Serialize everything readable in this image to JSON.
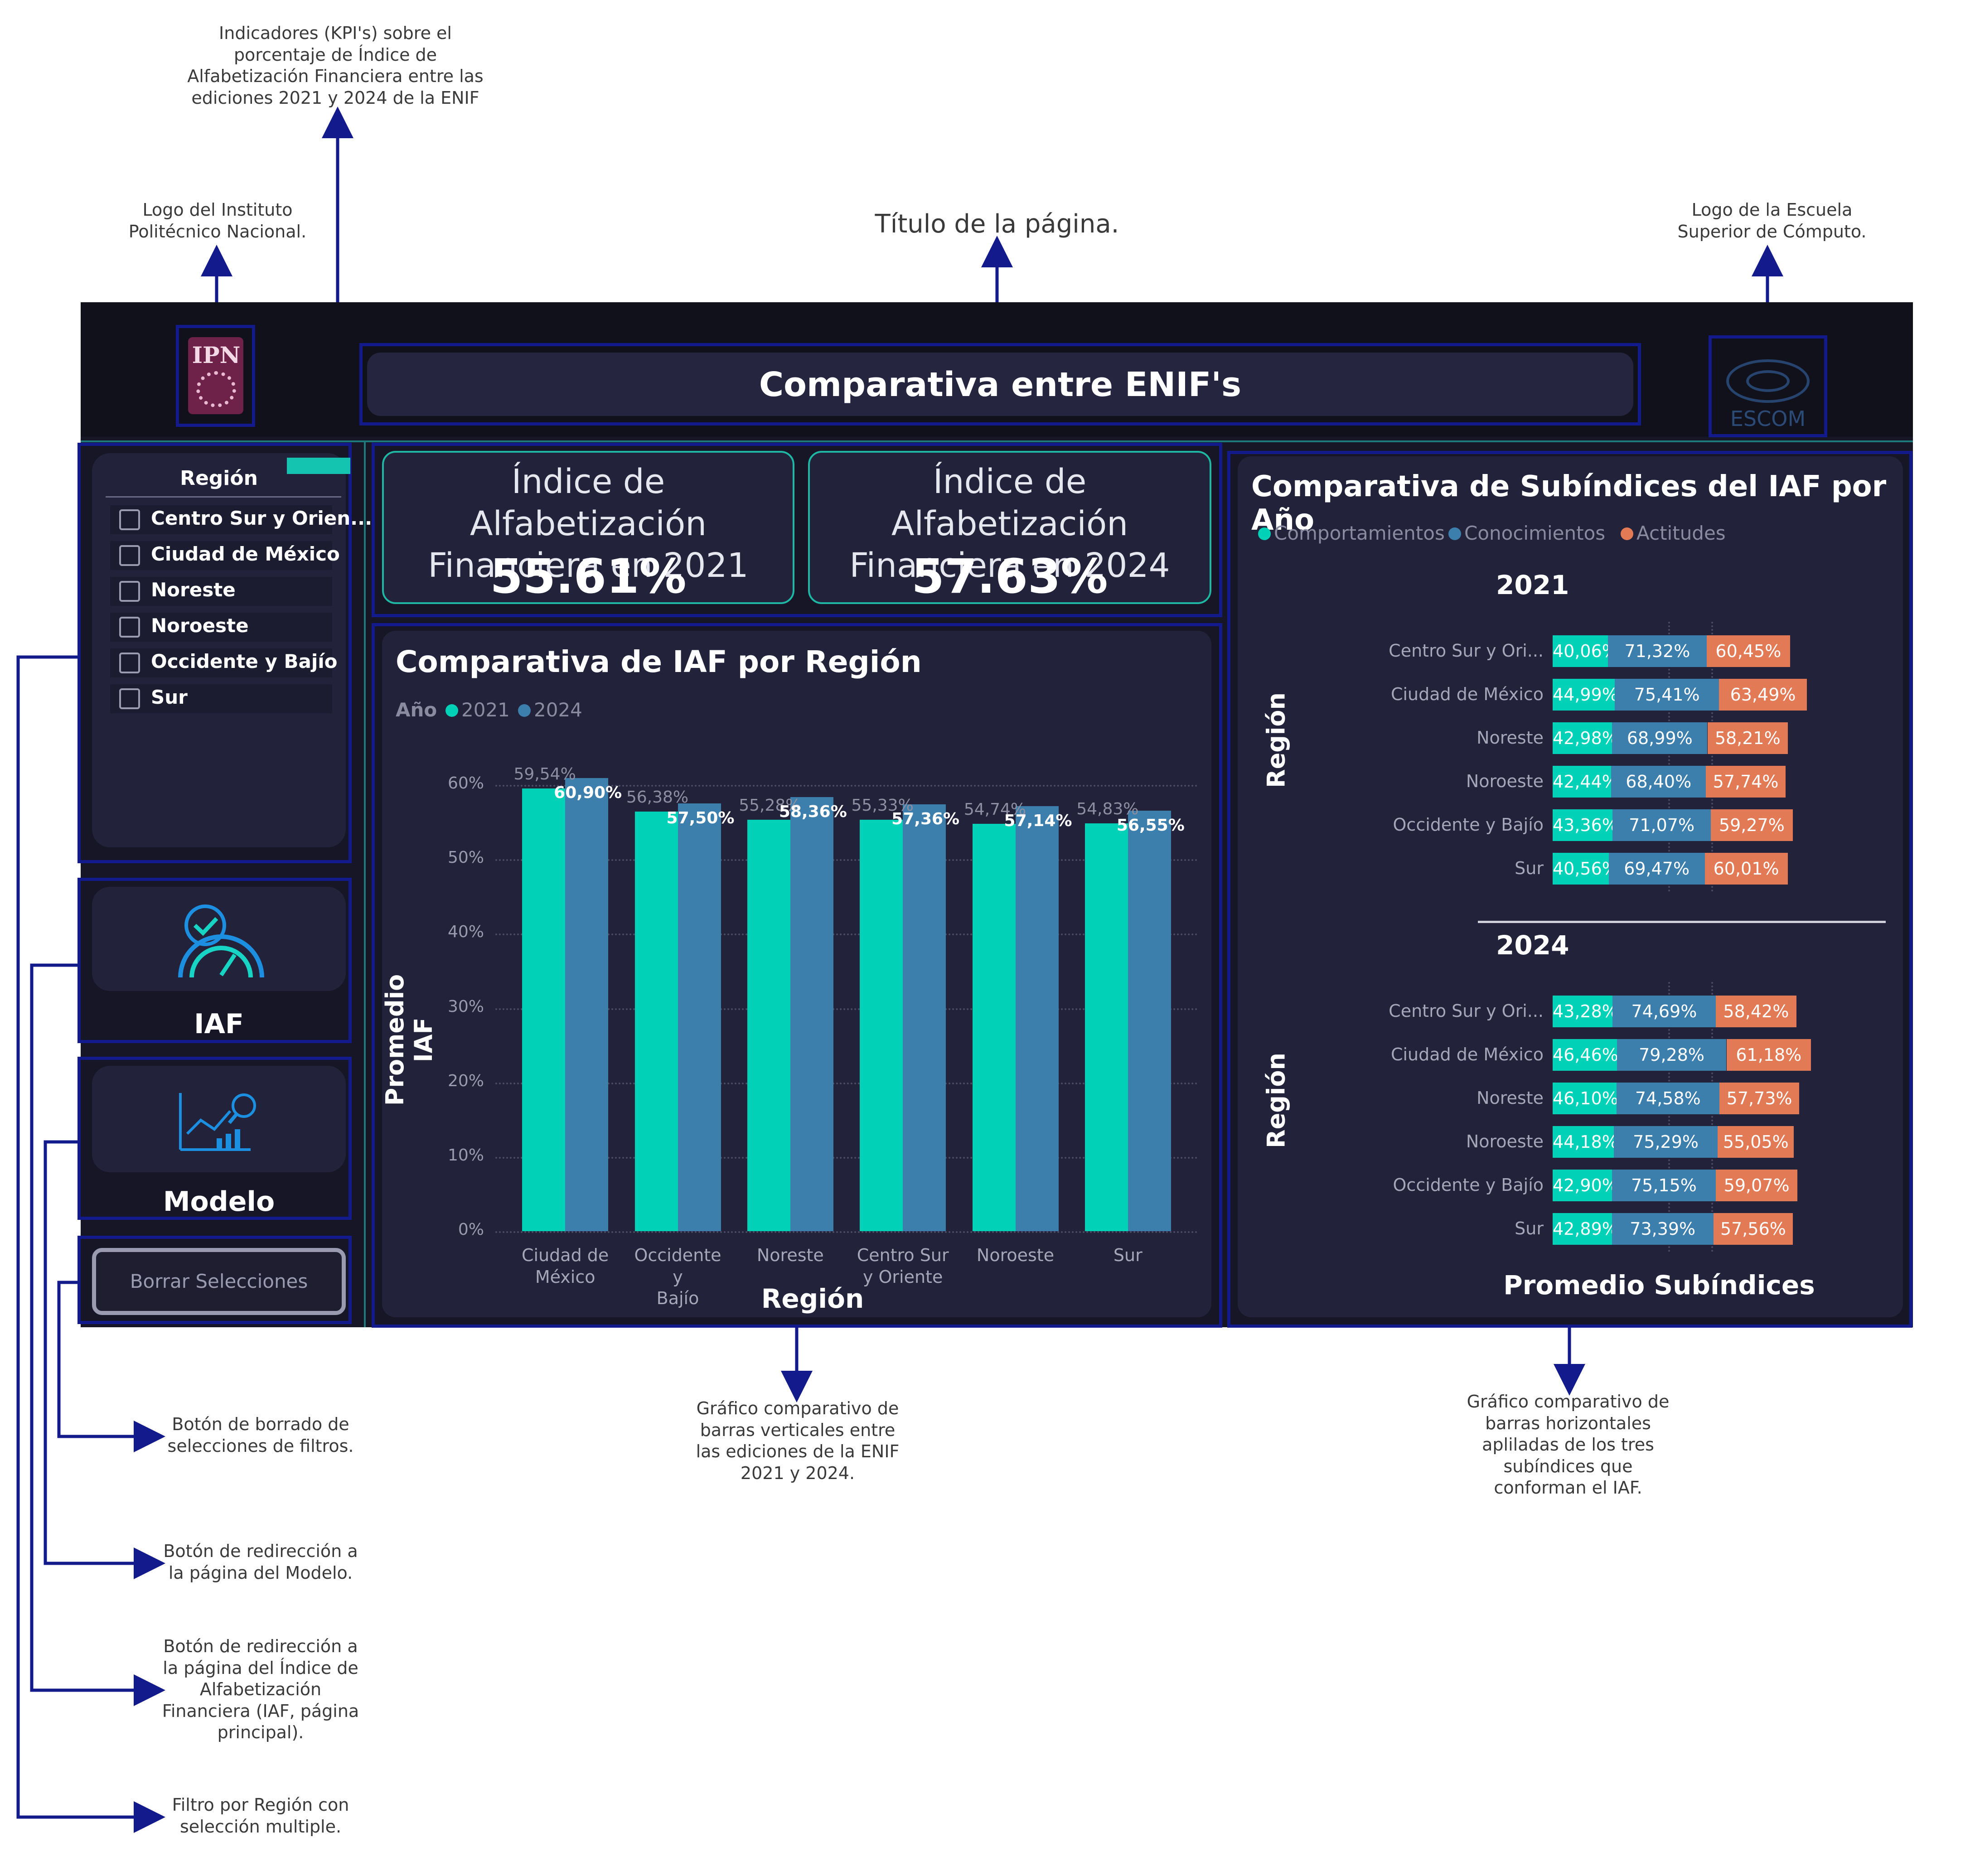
{
  "annotations": {
    "kpis": "Indicadores (KPI's) sobre el porcentaje de Índice de Alfabetización Financiera entre las ediciones 2021 y 2024 de la ENIF",
    "ipn_logo": "Logo del Instituto Politécnico Nacional.",
    "page_title": "Título de la página.",
    "escom_logo": "Logo de la Escuela Superior de Cómputo.",
    "bar_chart": "Gráfico comparativo de barras verticales entre las ediciones de la ENIF 2021 y 2024.",
    "stacked_chart": "Gráfico comparativo de barras horizontales apliladas de los tres subíndices que conforman el IAF.",
    "clear_button": "Botón de borrado de selecciones de filtros.",
    "model_button": "Botón de redirección a la página del Modelo.",
    "iaf_button": "Botón de redirección a la página del Índice de Alfabetización Financiera (IAF, página principal).",
    "region_filter": "Filtro por Región con selección multiple."
  },
  "header": {
    "title": "Comparativa entre ENIF's",
    "ipn_logo_text": "IPN",
    "escom_logo_text": "ESCOM"
  },
  "slicer": {
    "title": "Región",
    "items": [
      "Centro Sur y Orien...",
      "Ciudad de México",
      "Noreste",
      "Noroeste",
      "Occidente y Bajío",
      "Sur"
    ]
  },
  "nav": {
    "iaf_label": "IAF",
    "modelo_label": "Modelo",
    "clear_label": "Borrar Selecciones"
  },
  "kpi": {
    "k2021_title": "Índice de Alfabetización Financiera en 2021",
    "k2021_value": "55.61%",
    "k2024_title": "Índice de Alfabetización Financiera en 2024",
    "k2024_value": "57.63%"
  },
  "colors": {
    "c2021": "#00d1b7",
    "c2024": "#3d7fac",
    "comport": "#00d1b7",
    "conoc": "#3d7fac",
    "actit": "#e27a55",
    "navy": "#121a8c"
  },
  "chart_data": [
    {
      "type": "bar",
      "title": "Comparativa de IAF por Región",
      "legend_title": "Año",
      "xlabel": "Región",
      "ylabel": "Promedio IAF",
      "categories": [
        "Ciudad de México",
        "Occidente y Bajío",
        "Noreste",
        "Centro Sur y Oriente",
        "Noroeste",
        "Sur"
      ],
      "series": [
        {
          "name": "2021",
          "values": [
            59.54,
            56.38,
            55.28,
            55.33,
            54.74,
            54.83
          ],
          "labels": [
            "59,54%",
            "56,38%",
            "55,28%",
            "55,33%",
            "54,74%",
            "54,83%"
          ]
        },
        {
          "name": "2024",
          "values": [
            60.9,
            57.5,
            58.36,
            57.36,
            57.14,
            56.55
          ],
          "labels": [
            "60,90%",
            "57,50%",
            "58,36%",
            "57,36%",
            "57,14%",
            "56,55%"
          ]
        }
      ],
      "ylim": [
        0,
        60
      ],
      "yticks": [
        "0%",
        "10%",
        "20%",
        "30%",
        "40%",
        "50%",
        "60%"
      ],
      "grid": true,
      "legend": "top-left"
    },
    {
      "type": "bar",
      "orientation": "horizontal-stacked",
      "title": "Comparativa de Subíndices del IAF por Año",
      "xlabel": "Promedio Subíndices",
      "ylabel": "Región",
      "series_names": [
        "Comportamientos",
        "Conocimientos",
        "Actitudes"
      ],
      "panels": [
        {
          "year": "2021",
          "rows": [
            {
              "region": "Centro Sur y Ori...",
              "values": [
                40.06,
                71.32,
                60.45
              ],
              "labels": [
                "40,06%",
                "71,32%",
                "60,45%"
              ]
            },
            {
              "region": "Ciudad de México",
              "values": [
                44.99,
                75.41,
                63.49
              ],
              "labels": [
                "44,99%",
                "75,41%",
                "63,49%"
              ]
            },
            {
              "region": "Noreste",
              "values": [
                42.98,
                68.99,
                58.21
              ],
              "labels": [
                "42,98%",
                "68,99%",
                "58,21%"
              ]
            },
            {
              "region": "Noroeste",
              "values": [
                42.44,
                68.4,
                57.74
              ],
              "labels": [
                "42,44%",
                "68,40%",
                "57,74%"
              ]
            },
            {
              "region": "Occidente y Bajío",
              "values": [
                43.36,
                71.07,
                59.27
              ],
              "labels": [
                "43,36%",
                "71,07%",
                "59,27%"
              ]
            },
            {
              "region": "Sur",
              "values": [
                40.56,
                69.47,
                60.01
              ],
              "labels": [
                "40,56%",
                "69,47%",
                "60,01%"
              ]
            }
          ]
        },
        {
          "year": "2024",
          "rows": [
            {
              "region": "Centro Sur y Ori...",
              "values": [
                43.28,
                74.69,
                58.42
              ],
              "labels": [
                "43,28%",
                "74,69%",
                "58,42%"
              ]
            },
            {
              "region": "Ciudad de México",
              "values": [
                46.46,
                79.28,
                61.18
              ],
              "labels": [
                "46,46%",
                "79,28%",
                "61,18%"
              ]
            },
            {
              "region": "Noreste",
              "values": [
                46.1,
                74.58,
                57.73
              ],
              "labels": [
                "46,10%",
                "74,58%",
                "57,73%"
              ]
            },
            {
              "region": "Noroeste",
              "values": [
                44.18,
                75.29,
                55.05
              ],
              "labels": [
                "44,18%",
                "75,29%",
                "55,05%"
              ]
            },
            {
              "region": "Occidente y Bajío",
              "values": [
                42.9,
                75.15,
                59.07
              ],
              "labels": [
                "42,90%",
                "75,15%",
                "59,07%"
              ]
            },
            {
              "region": "Sur",
              "values": [
                42.89,
                73.39,
                57.56
              ],
              "labels": [
                "42,89%",
                "73,39%",
                "57,56%"
              ]
            }
          ]
        }
      ],
      "legend": "top-left"
    }
  ]
}
